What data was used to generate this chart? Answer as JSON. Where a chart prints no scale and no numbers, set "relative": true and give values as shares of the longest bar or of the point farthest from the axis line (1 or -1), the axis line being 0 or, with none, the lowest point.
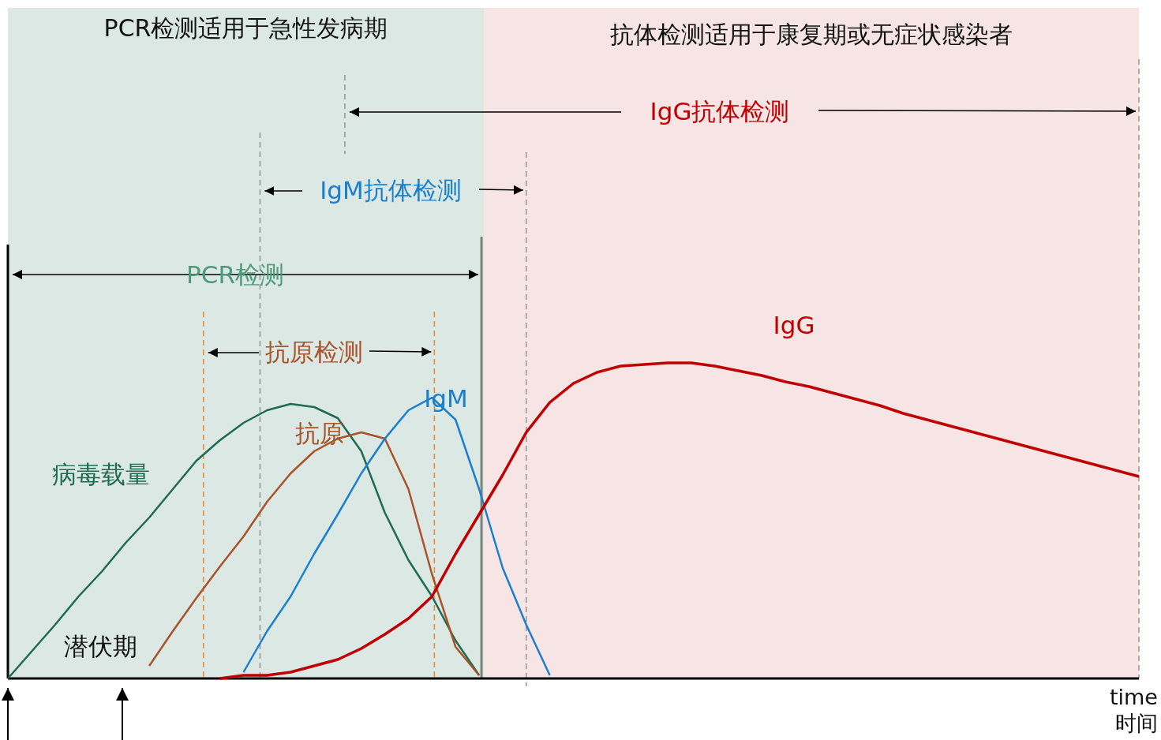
{
  "chart_data": {
    "type": "line",
    "relative": true,
    "xlabel": "time 时间",
    "categories": [
      null,
      null,
      null,
      null,
      null,
      null,
      null,
      null,
      null,
      null,
      null,
      null,
      null,
      null,
      null,
      null,
      null,
      null,
      null,
      null,
      null,
      null,
      null,
      null,
      null,
      null,
      null,
      null,
      null,
      null,
      null,
      null,
      null,
      null,
      null,
      null,
      null,
      null,
      null,
      null,
      null,
      null,
      null,
      null,
      null,
      null,
      null,
      null,
      null
    ],
    "grid": false,
    "legend": false,
    "marker": "none",
    "line_style": "solid",
    "series": [
      {
        "name": "病毒载量",
        "color": "#1e6b52",
        "values": [
          0,
          0.085,
          0.17,
          0.26,
          0.34,
          0.43,
          0.51,
          0.6,
          0.69,
          0.755,
          0.81,
          0.85,
          0.87,
          0.86,
          0.825,
          0.72,
          0.525,
          0.375,
          0.26,
          0.12,
          0.01,
          null,
          null,
          null,
          null,
          null,
          null,
          null,
          null,
          null,
          null,
          null,
          null,
          null,
          null,
          null,
          null,
          null,
          null,
          null,
          null,
          null,
          null,
          null,
          null,
          null,
          null,
          null,
          null
        ]
      },
      {
        "name": "抗原",
        "color": "#a8532a",
        "values": [
          null,
          null,
          null,
          null,
          null,
          null,
          0.04,
          0.15,
          0.255,
          0.355,
          0.45,
          0.56,
          0.65,
          0.72,
          0.76,
          0.78,
          0.76,
          0.6,
          0.33,
          0.1,
          0.01,
          null,
          null,
          null,
          null,
          null,
          null,
          null,
          null,
          null,
          null,
          null,
          null,
          null,
          null,
          null,
          null,
          null,
          null,
          null,
          null,
          null,
          null,
          null,
          null,
          null,
          null,
          null,
          null
        ]
      },
      {
        "name": "IgM",
        "color": "#1a7fcc",
        "values": [
          null,
          null,
          null,
          null,
          null,
          null,
          null,
          null,
          null,
          null,
          0.02,
          0.15,
          0.26,
          0.395,
          0.52,
          0.65,
          0.76,
          0.85,
          0.89,
          0.82,
          0.6,
          0.35,
          0.17,
          0.01,
          null,
          null,
          null,
          null,
          null,
          null,
          null,
          null,
          null,
          null,
          null,
          null,
          null,
          null,
          null,
          null,
          null,
          null,
          null,
          null,
          null,
          null,
          null,
          null,
          null
        ]
      },
      {
        "name": "IgG",
        "color": "#c00000",
        "values": [
          null,
          null,
          null,
          null,
          null,
          null,
          null,
          null,
          null,
          0,
          0.01,
          0.01,
          0.02,
          0.04,
          0.06,
          0.095,
          0.14,
          0.19,
          0.26,
          0.395,
          0.52,
          0.645,
          0.78,
          0.875,
          0.935,
          0.97,
          0.99,
          0.995,
          1,
          1,
          0.99,
          0.975,
          0.96,
          0.94,
          0.925,
          0.905,
          0.885,
          0.865,
          0.84,
          0.82,
          0.8,
          0.78,
          0.76,
          0.74,
          0.72,
          0.7,
          0.68,
          0.66,
          0.64
        ]
      }
    ],
    "annotations": [
      "IgG抗体检测",
      "IgM抗体检测",
      "PCR检测",
      "抗原检测",
      "潜伏期",
      "PCR检测适用于急性发病期",
      "抗体检测适用于康复期或无症状感染者"
    ]
  }
}
